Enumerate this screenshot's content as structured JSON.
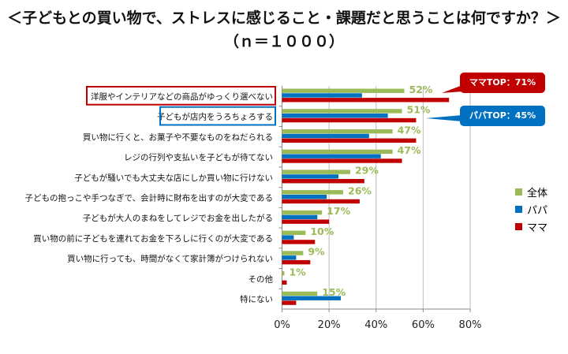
{
  "title": "＜子どもとの買い物で、ストレスに感じること・課題だと思うことは何ですか？＞",
  "subtitle": "（ｎ＝１０００）",
  "colors": {
    "all": "#9bbb59",
    "papa": "#0070c0",
    "mama": "#c00000"
  },
  "callouts": {
    "mama": "ママTOP：71%",
    "papa": "パパTOP：45%"
  },
  "chart_data": {
    "type": "bar",
    "orientation": "horizontal",
    "categories": [
      "洋服やインテリアなどの商品がゆっくり選べない",
      "子どもが店内をうろちょろする",
      "買い物に行くと、お菓子や不要なものをねだられる",
      "レジの行列や支払いを子どもが待てない",
      "子どもが騒いでも大丈夫な店にしか買い物に行けない",
      "子どもの抱っこや手つなぎで、会計時に財布を出すのが大変である",
      "子どもが大人のまねをしてレジでお金を出したがる",
      "買い物の前に子どもを連れてお金を下ろしに行くのが大変である",
      "買い物に行っても、時間がなくて家計簿がつけられない",
      "その他",
      "特にない"
    ],
    "series": [
      {
        "name": "全体",
        "values": [
          52,
          51,
          47,
          47,
          29,
          26,
          17,
          10,
          9,
          1,
          15
        ],
        "labels": [
          "52%",
          "51%",
          "47%",
          "47%",
          "29%",
          "26%",
          "17%",
          "10%",
          "9%",
          "1%",
          "15%"
        ]
      },
      {
        "name": "パパ",
        "values": [
          34,
          45,
          37,
          42,
          24,
          19,
          15,
          5,
          6,
          0,
          25
        ]
      },
      {
        "name": "ママ",
        "values": [
          71,
          57,
          57,
          51,
          35,
          33,
          20,
          14,
          12,
          2,
          6
        ]
      }
    ],
    "xlim": [
      0,
      80
    ],
    "xticks": [
      "0%",
      "20%",
      "40%",
      "60%",
      "80%"
    ],
    "grid": true,
    "legend": "right"
  }
}
